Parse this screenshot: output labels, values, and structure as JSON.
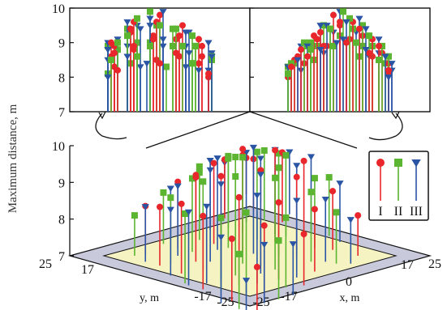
{
  "chart_data": {
    "type": "scatter",
    "subtype": "3d-stem",
    "zlabel": "Maximum distance, m",
    "xlabel": "x, m",
    "ylabel": "y, m",
    "zlim": [
      7,
      10
    ],
    "z_ticks": [
      "7",
      "8",
      "9",
      "10"
    ],
    "x_ticks": [
      "-25",
      "-17",
      "0",
      "17",
      "25"
    ],
    "y_ticks": [
      "25",
      "17",
      "0",
      "-17",
      "-25"
    ],
    "grid": false,
    "legend_position": "right",
    "series": [
      {
        "name": "I",
        "color": "#e8262b",
        "marker": "circle",
        "points": [
          {
            "x": -15,
            "y": 14,
            "z": 8.3
          },
          {
            "x": -10,
            "y": 15,
            "z": 8.6
          },
          {
            "x": -5,
            "y": 14,
            "z": 8.9
          },
          {
            "x": 2,
            "y": 15,
            "z": 9.0
          },
          {
            "x": 9,
            "y": 14,
            "z": 8.7
          },
          {
            "x": 15,
            "y": 13,
            "z": 8.2
          },
          {
            "x": -12,
            "y": 8,
            "z": 8.8
          },
          {
            "x": -6,
            "y": 9,
            "z": 9.3
          },
          {
            "x": 0,
            "y": 8,
            "z": 9.6
          },
          {
            "x": 6,
            "y": 9,
            "z": 9.4
          },
          {
            "x": 12,
            "y": 8,
            "z": 8.9
          },
          {
            "x": -14,
            "y": 1,
            "z": 8.5
          },
          {
            "x": -8,
            "y": 2,
            "z": 9.2
          },
          {
            "x": -2,
            "y": 0,
            "z": 9.8
          },
          {
            "x": 4,
            "y": 1,
            "z": 9.6
          },
          {
            "x": 10,
            "y": 2,
            "z": 9.1
          },
          {
            "x": 15,
            "y": 0,
            "z": 8.4
          },
          {
            "x": -13,
            "y": -6,
            "z": 8.6
          },
          {
            "x": -7,
            "y": -5,
            "z": 9.1
          },
          {
            "x": 0,
            "y": -7,
            "z": 9.5
          },
          {
            "x": 7,
            "y": -6,
            "z": 9.2
          },
          {
            "x": 13,
            "y": -5,
            "z": 8.7
          },
          {
            "x": -11,
            "y": -12,
            "z": 8.4
          },
          {
            "x": -4,
            "y": -13,
            "z": 8.9
          },
          {
            "x": 3,
            "y": -12,
            "z": 9.1
          },
          {
            "x": 10,
            "y": -13,
            "z": 8.6
          },
          {
            "x": 15,
            "y": -15,
            "z": 8.1
          },
          {
            "x": -16,
            "y": -15,
            "z": 8.0
          }
        ]
      },
      {
        "name": "II",
        "color": "#5cb530",
        "marker": "square",
        "points": [
          {
            "x": -16,
            "y": 16,
            "z": 8.1
          },
          {
            "x": -9,
            "y": 13,
            "z": 8.8
          },
          {
            "x": -2,
            "y": 16,
            "z": 8.9
          },
          {
            "x": 5,
            "y": 13,
            "z": 9.0
          },
          {
            "x": 12,
            "y": 15,
            "z": 8.5
          },
          {
            "x": -15,
            "y": 9,
            "z": 8.4
          },
          {
            "x": -9,
            "y": 7,
            "z": 9.0
          },
          {
            "x": -3,
            "y": 10,
            "z": 9.4
          },
          {
            "x": 3,
            "y": 7,
            "z": 9.7
          },
          {
            "x": 9,
            "y": 10,
            "z": 9.2
          },
          {
            "x": 15,
            "y": 7,
            "z": 8.6
          },
          {
            "x": -11,
            "y": 3,
            "z": 9.0
          },
          {
            "x": -5,
            "y": 1,
            "z": 9.5
          },
          {
            "x": 1,
            "y": 3,
            "z": 9.9
          },
          {
            "x": 7,
            "y": 0,
            "z": 9.5
          },
          {
            "x": 13,
            "y": 3,
            "z": 8.9
          },
          {
            "x": -16,
            "y": -2,
            "z": 8.3
          },
          {
            "x": -10,
            "y": -4,
            "z": 8.9
          },
          {
            "x": -3,
            "y": -5,
            "z": 9.4
          },
          {
            "x": 4,
            "y": -4,
            "z": 9.4
          },
          {
            "x": 10,
            "y": -7,
            "z": 8.9
          },
          {
            "x": -14,
            "y": -10,
            "z": 8.4
          },
          {
            "x": -7,
            "y": -11,
            "z": 8.9
          },
          {
            "x": 0,
            "y": -10,
            "z": 9.2
          },
          {
            "x": 7,
            "y": -11,
            "z": 8.9
          },
          {
            "x": 14,
            "y": -10,
            "z": 8.4
          },
          {
            "x": -8,
            "y": -16,
            "z": 8.5
          },
          {
            "x": 6,
            "y": -16,
            "z": 8.6
          }
        ]
      },
      {
        "name": "III",
        "color": "#2a55a5",
        "marker": "triangle",
        "points": [
          {
            "x": -13,
            "y": 16,
            "z": 8.5
          },
          {
            "x": -6,
            "y": 16,
            "z": 8.8
          },
          {
            "x": 1,
            "y": 13,
            "z": 9.1
          },
          {
            "x": 8,
            "y": 16,
            "z": 8.8
          },
          {
            "x": 15,
            "y": 16,
            "z": 8.0
          },
          {
            "x": -16,
            "y": 6,
            "z": 8.3
          },
          {
            "x": -10,
            "y": 10,
            "z": 8.9
          },
          {
            "x": -4,
            "y": 7,
            "z": 9.5
          },
          {
            "x": 2,
            "y": 10,
            "z": 9.6
          },
          {
            "x": 8,
            "y": 6,
            "z": 9.4
          },
          {
            "x": 14,
            "y": 10,
            "z": 8.6
          },
          {
            "x": -12,
            "y": -1,
            "z": 8.9
          },
          {
            "x": -6,
            "y": 3,
            "z": 9.5
          },
          {
            "x": 0,
            "y": -1,
            "z": 9.9
          },
          {
            "x": 6,
            "y": 3,
            "z": 9.7
          },
          {
            "x": 12,
            "y": -1,
            "z": 9.1
          },
          {
            "x": -15,
            "y": -8,
            "z": 8.3
          },
          {
            "x": -9,
            "y": -8,
            "z": 8.9
          },
          {
            "x": -2,
            "y": -9,
            "z": 9.3
          },
          {
            "x": 5,
            "y": -8,
            "z": 9.3
          },
          {
            "x": 12,
            "y": -9,
            "z": 8.7
          },
          {
            "x": -12,
            "y": -15,
            "z": 8.2
          },
          {
            "x": -5,
            "y": -16,
            "z": 8.7
          },
          {
            "x": 2,
            "y": -15,
            "z": 9.0
          },
          {
            "x": 9,
            "y": -16,
            "z": 8.6
          },
          {
            "x": 16,
            "y": -12,
            "z": 8.2
          },
          {
            "x": -1,
            "y": 16,
            "z": 9.0
          },
          {
            "x": 16,
            "y": 4,
            "z": 8.4
          }
        ]
      }
    ]
  }
}
